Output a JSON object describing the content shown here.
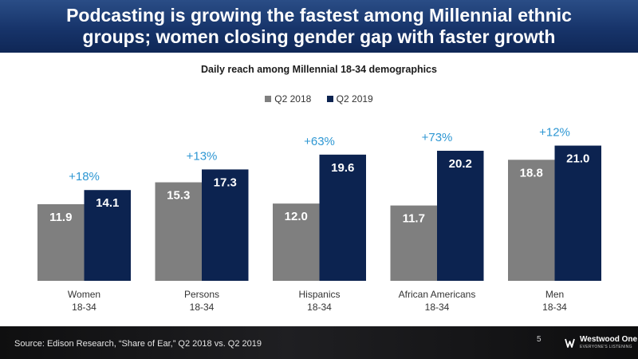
{
  "header": {
    "title": "Podcasting is growing the fastest among Millennial ethnic\ngroups; women closing gender gap with faster growth"
  },
  "colors": {
    "header_bg": "#17346a",
    "q2_2018": "#7f7f7f",
    "q2_2019": "#0c2350",
    "growth": "#2e97d3"
  },
  "chart_data": {
    "type": "bar",
    "title": "Daily reach among Millennial 18-34 demographics",
    "categories": [
      [
        "Women",
        "18-34"
      ],
      [
        "Persons",
        "18-34"
      ],
      [
        "Hispanics",
        "18-34"
      ],
      [
        "African Americans",
        "18-34"
      ],
      [
        "Men",
        "18-34"
      ]
    ],
    "series": [
      {
        "name": "Q2 2018",
        "color": "#7f7f7f",
        "values": [
          11.9,
          15.3,
          12.0,
          11.7,
          18.8
        ]
      },
      {
        "name": "Q2 2019",
        "color": "#0c2350",
        "values": [
          14.1,
          17.3,
          19.6,
          20.2,
          21.0
        ]
      }
    ],
    "growth_labels": [
      "+18%",
      "+13%",
      "+63%",
      "+73%",
      "+12%"
    ],
    "ylim": [
      0,
      24
    ],
    "grid": false,
    "legend_position": "top-center"
  },
  "footer": {
    "source": "Source: Edison Research, “Share of Ear,” Q2 2018 vs. Q2 2019",
    "page_number": "5",
    "logo_name": "Westwood One",
    "logo_tagline": "EVERYONE'S LISTENING"
  }
}
